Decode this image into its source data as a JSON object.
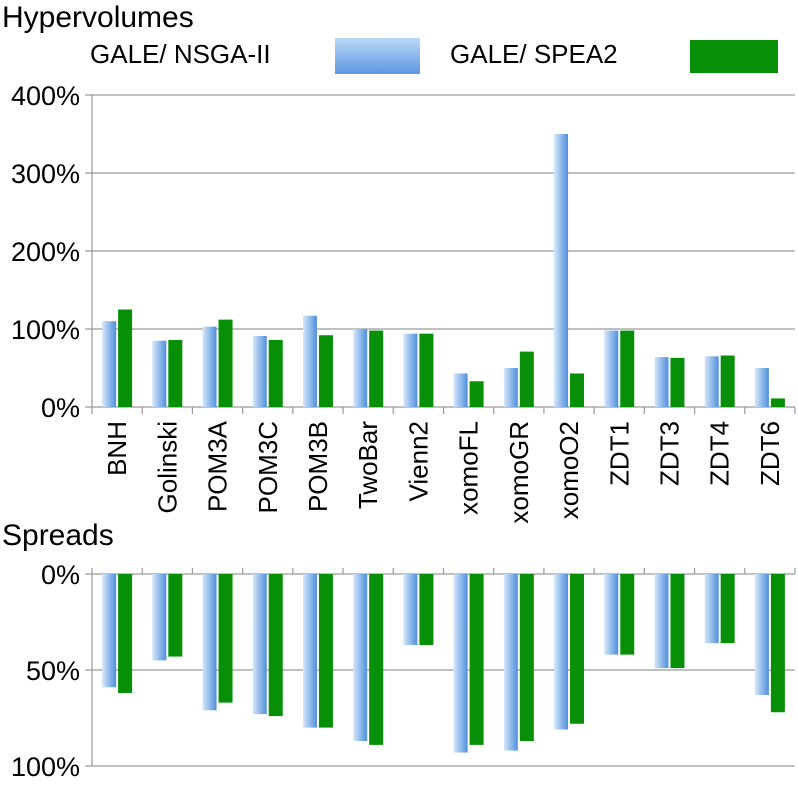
{
  "legend": {
    "items": [
      {
        "label": "GALE/ NSGA-II",
        "color_light": "#d6e7fb",
        "color_dark": "#4f8fdc"
      },
      {
        "label": "GALE/ SPEA2",
        "color_light": "#0a8f0a",
        "color_dark": "#079007"
      }
    ]
  },
  "chart_data": [
    {
      "type": "bar",
      "title": "Hypervolumes",
      "categories": [
        "BNH",
        "Golinski",
        "POM3A",
        "POM3C",
        "POM3B",
        "TwoBar",
        "Vienn2",
        "xomoFL",
        "xomoGR",
        "xomoO2",
        "ZDT1",
        "ZDT3",
        "ZDT4",
        "ZDT6"
      ],
      "series": [
        {
          "name": "GALE/ NSGA-II",
          "values": [
            110,
            85,
            103,
            91,
            117,
            100,
            94,
            43,
            50,
            350,
            98,
            64,
            65,
            50
          ]
        },
        {
          "name": "GALE/ SPEA2",
          "values": [
            125,
            86,
            112,
            86,
            92,
            98,
            94,
            33,
            71,
            43,
            98,
            63,
            66,
            11
          ]
        }
      ],
      "ylim": [
        0,
        400
      ],
      "yticks": [
        "0%",
        "100%",
        "200%",
        "300%",
        "400%"
      ],
      "xlabel": "",
      "ylabel": "",
      "legend": "top"
    },
    {
      "type": "bar",
      "title": "Spreads",
      "categories": [
        "BNH",
        "Golinski",
        "POM3A",
        "POM3C",
        "POM3B",
        "TwoBar",
        "Vienn2",
        "xomoFL",
        "xomoGR",
        "xomoO2",
        "ZDT1",
        "ZDT3",
        "ZDT4",
        "ZDT6"
      ],
      "series": [
        {
          "name": "GALE/ NSGA-II",
          "values": [
            59,
            45,
            71,
            73,
            80,
            87,
            37,
            93,
            92,
            81,
            42,
            49,
            36,
            63
          ]
        },
        {
          "name": "GALE/ SPEA2",
          "values": [
            62,
            43,
            67,
            74,
            80,
            89,
            37,
            89,
            87,
            78,
            42,
            49,
            36,
            72
          ]
        }
      ],
      "ylim": [
        0,
        100
      ],
      "yticks": [
        "0%",
        "50%",
        "100%"
      ],
      "inverted": true,
      "xlabel": "",
      "ylabel": ""
    }
  ]
}
